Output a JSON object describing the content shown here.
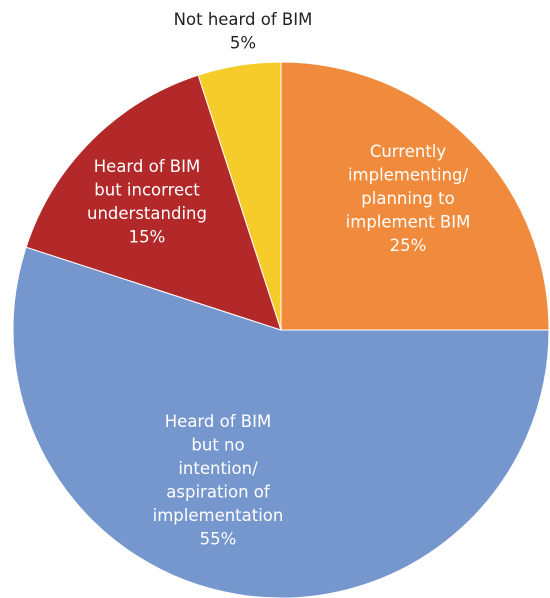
{
  "chart_data": {
    "type": "pie",
    "title": "",
    "start": "12 o'clock, clockwise",
    "slices": [
      {
        "label_lines": [
          "Currently",
          "implementing/",
          "planning to",
          "implement BIM"
        ],
        "value_label": "25%",
        "value": 25,
        "color": "#F08A3C",
        "label_color": "#ffffff"
      },
      {
        "label_lines": [
          "Heard of BIM",
          "but no",
          "intention/",
          "aspiration of",
          "implementation"
        ],
        "value_label": "55%",
        "value": 55,
        "color": "#7697CD",
        "label_color": "#ffffff"
      },
      {
        "label_lines": [
          "Heard of BIM",
          "but incorrect",
          "understanding"
        ],
        "value_label": "15%",
        "value": 15,
        "color": "#B3292A",
        "label_color": "#ffffff"
      },
      {
        "label_lines": [
          "Not heard of BIM"
        ],
        "value_label": "5%",
        "value": 5,
        "color": "#F5CC2A",
        "label_color": "#222222"
      }
    ]
  }
}
